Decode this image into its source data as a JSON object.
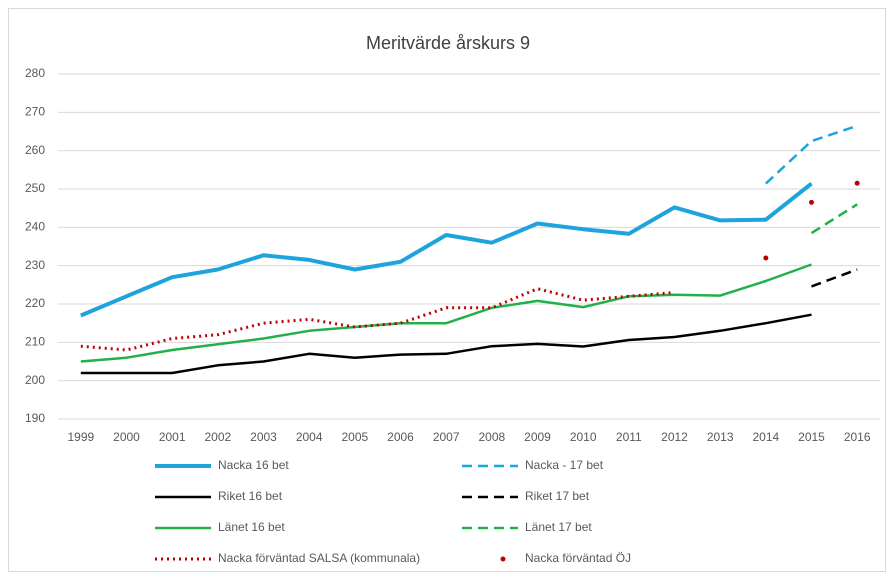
{
  "chart_data": {
    "type": "line",
    "title": "Meritvärde årskurs 9",
    "categories": [
      "1999",
      "2000",
      "2001",
      "2002",
      "2003",
      "2004",
      "2005",
      "2006",
      "2007",
      "2008",
      "2009",
      "2010",
      "2011",
      "2012",
      "2013",
      "2014",
      "2015",
      "2016"
    ],
    "ylim": [
      190,
      280
    ],
    "yticks": [
      190,
      200,
      210,
      220,
      230,
      240,
      250,
      260,
      270,
      280
    ],
    "grid": true,
    "series": [
      {
        "name": "Nacka 16 bet",
        "color": "#1fa3dc",
        "line_style": "solid",
        "values": [
          217,
          222,
          227,
          229,
          232.7,
          231.5,
          229,
          231,
          238,
          236,
          241,
          239.5,
          238.3,
          245.2,
          241.8,
          242,
          251.4,
          null
        ]
      },
      {
        "name": "Nacka - 17 bet",
        "color": "#1fa3dc",
        "line_style": "dash",
        "values": [
          null,
          null,
          null,
          null,
          null,
          null,
          null,
          null,
          null,
          null,
          null,
          null,
          null,
          null,
          null,
          251.4,
          262.5,
          266.5
        ]
      },
      {
        "name": "Riket 16 bet",
        "color": "#000000",
        "line_style": "solid",
        "values": [
          202,
          202,
          202,
          204,
          205,
          207,
          206,
          206.8,
          207,
          209,
          209.6,
          208.9,
          210.6,
          211.4,
          213,
          215,
          217.2,
          null
        ]
      },
      {
        "name": "Riket 17 bet",
        "color": "#000000",
        "line_style": "dash",
        "values": [
          null,
          null,
          null,
          null,
          null,
          null,
          null,
          null,
          null,
          null,
          null,
          null,
          null,
          null,
          null,
          null,
          224.6,
          229
        ]
      },
      {
        "name": "Länet 16 bet",
        "color": "#22b04a",
        "line_style": "solid",
        "values": [
          205,
          206,
          208,
          209.5,
          211,
          213,
          214,
          215,
          215,
          219,
          220.8,
          219.2,
          222,
          222.4,
          222.2,
          226,
          230.3,
          null
        ]
      },
      {
        "name": "Länet 17 bet",
        "color": "#22b04a",
        "line_style": "dash",
        "values": [
          null,
          null,
          null,
          null,
          null,
          null,
          null,
          null,
          null,
          null,
          null,
          null,
          null,
          null,
          null,
          null,
          238.5,
          246
        ]
      },
      {
        "name": "Nacka förväntad SALSA (kommunala)",
        "color": "#c00000",
        "line_style": "dot",
        "values": [
          209,
          208,
          211,
          212,
          215,
          216,
          214,
          215,
          219,
          219,
          224,
          221,
          222,
          223,
          null,
          null,
          null,
          null
        ]
      },
      {
        "name": "Nacka förväntad ÖJ",
        "color": "#c00000",
        "line_style": "marker",
        "values": [
          null,
          null,
          null,
          null,
          null,
          null,
          null,
          null,
          null,
          null,
          null,
          null,
          null,
          null,
          null,
          232,
          246.5,
          251.5
        ]
      }
    ]
  }
}
